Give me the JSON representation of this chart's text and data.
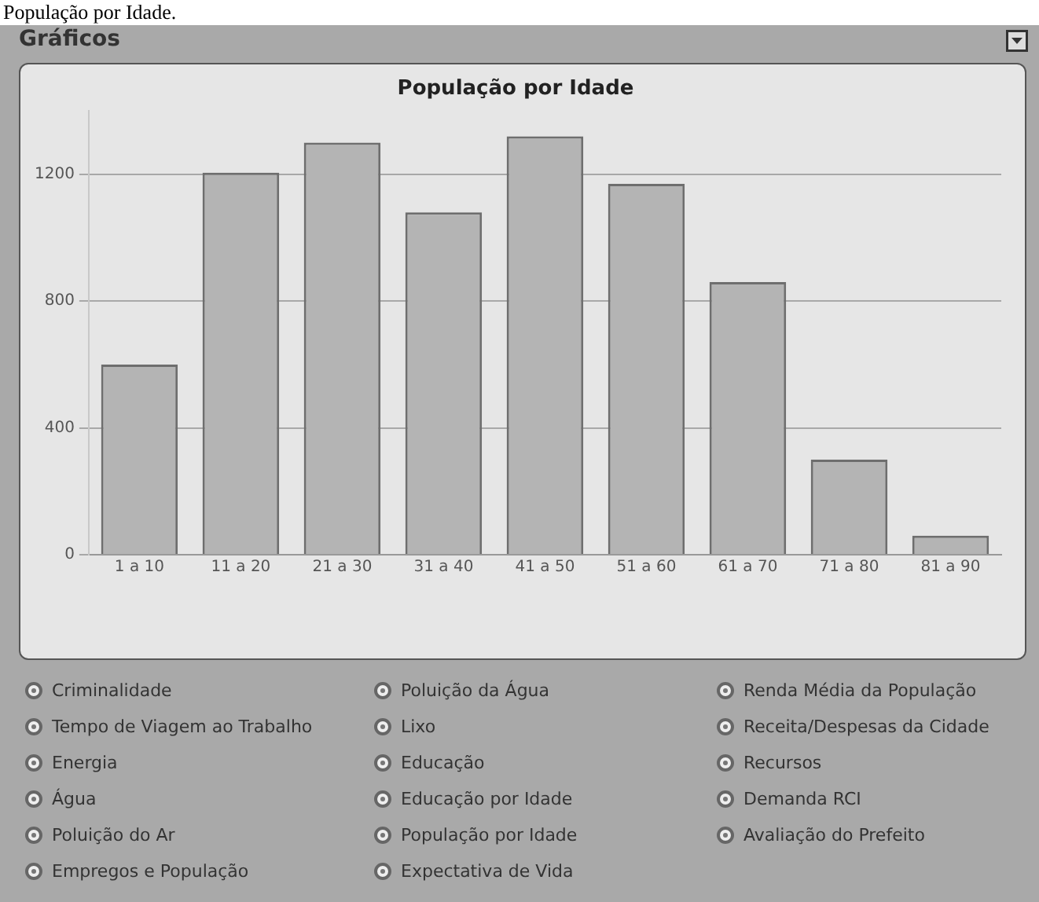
{
  "chart_data": {
    "type": "bar",
    "title": "População por Idade",
    "categories": [
      "1 a 10",
      "11 a 20",
      "21 a 30",
      "31 a 40",
      "41 a 50",
      "51 a 60",
      "61 a 70",
      "71 a 80",
      "81 a 90"
    ],
    "values": [
      600,
      1205,
      1300,
      1080,
      1320,
      1170,
      860,
      300,
      60
    ],
    "color": "#b4b4b4",
    "ylim": [
      0,
      1400
    ],
    "yticks": [
      0,
      400,
      800,
      1200
    ],
    "grid": "y",
    "legend": false,
    "annotations": [
      "População por Idade.",
      "Gráficos",
      "Criminalidade",
      "Tempo de Viagem ao Trabalho",
      "Energia",
      "Água",
      "Poluição do Ar",
      "Empregos e População",
      "Poluição da Água",
      "Lixo",
      "Educação",
      "Educação por Idade",
      "População por Idade",
      "Expectativa de Vida",
      "Renda Média da População",
      "Receita/Despesas da Cidade",
      "Recursos",
      "Demanda RCI",
      "Avaliação do Prefeito"
    ]
  }
}
